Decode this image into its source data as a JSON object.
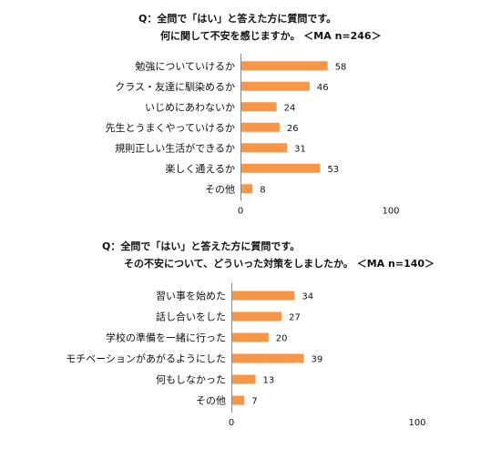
{
  "chart_data": [
    {
      "type": "bar",
      "orientation": "horizontal",
      "title": [
        "Q：全問で「はい」と答えた方に質問です。",
        "何に関して不安を感じますか。 ＜MA n=246＞"
      ],
      "categories": [
        "勉強についていけるか",
        "クラス・友達に馴染めるか",
        "いじめにあわないか",
        "先生とうまくやっていけるか",
        "規則正しい生活ができるか",
        "楽しく通えるか",
        "その他"
      ],
      "values": [
        58,
        46,
        24,
        26,
        31,
        53,
        8
      ],
      "xlim": [
        0,
        100
      ],
      "ticks": [
        "0",
        "100"
      ],
      "bar_color": "#f79646",
      "grid": false
    },
    {
      "type": "bar",
      "orientation": "horizontal",
      "title": [
        "Q：全問で「はい」と答えた方に質問です。",
        "その不安について、どういった対策をしましたか。 ＜MA n=140＞"
      ],
      "categories": [
        "習い事を始めた",
        "話し合いをした",
        "学校の準備を一緒に行った",
        "モチベーションがあがるようにした",
        "何もしなかった",
        "その他"
      ],
      "values": [
        34,
        27,
        20,
        39,
        13,
        7
      ],
      "xlim": [
        0,
        100
      ],
      "ticks": [
        "0",
        "100"
      ],
      "bar_color": "#f79646",
      "grid": false
    }
  ]
}
